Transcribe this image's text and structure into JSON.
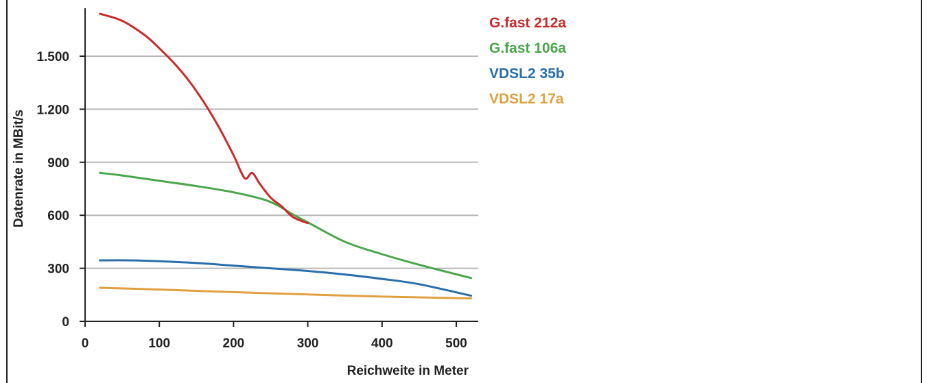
{
  "chart_data": {
    "type": "line",
    "xlabel": "Reichweite in Meter",
    "ylabel": "Datenrate in MBit/s",
    "xlim": [
      0,
      530
    ],
    "ylim": [
      0,
      1720
    ],
    "xticks": [
      0,
      100,
      200,
      300,
      400,
      500
    ],
    "xtick_labels": [
      "0",
      "100",
      "200",
      "300",
      "400",
      "500"
    ],
    "yticks": [
      0,
      300,
      600,
      900,
      1200,
      1500
    ],
    "ytick_labels": [
      "0",
      "300",
      "600",
      "900",
      "1.200",
      "1.500"
    ],
    "grid": "horizontal",
    "legend_position": "top-right",
    "series": [
      {
        "name": "G.fast 212a",
        "color": "#cc2a2a",
        "x": [
          20,
          50,
          80,
          100,
          120,
          140,
          160,
          180,
          200,
          215,
          225,
          235,
          250,
          265,
          280,
          300
        ],
        "y": [
          1740,
          1700,
          1620,
          1545,
          1460,
          1360,
          1240,
          1100,
          940,
          810,
          840,
          780,
          700,
          650,
          590,
          555
        ]
      },
      {
        "name": "G.fast 106a",
        "color": "#4aa64a",
        "x": [
          20,
          50,
          100,
          150,
          200,
          240,
          260,
          280,
          300,
          350,
          400,
          450,
          520
        ],
        "y": [
          840,
          825,
          795,
          765,
          730,
          690,
          655,
          605,
          560,
          450,
          380,
          320,
          245
        ]
      },
      {
        "name": "VDSL2 35b",
        "color": "#2a6eaa",
        "x": [
          20,
          60,
          100,
          150,
          200,
          250,
          300,
          350,
          400,
          450,
          520
        ],
        "y": [
          345,
          345,
          340,
          330,
          315,
          300,
          285,
          265,
          240,
          210,
          145
        ]
      },
      {
        "name": "VDSL2 17a",
        "color": "#e0a040",
        "x": [
          20,
          100,
          200,
          300,
          400,
          520
        ],
        "y": [
          190,
          180,
          165,
          152,
          140,
          130
        ]
      }
    ]
  }
}
